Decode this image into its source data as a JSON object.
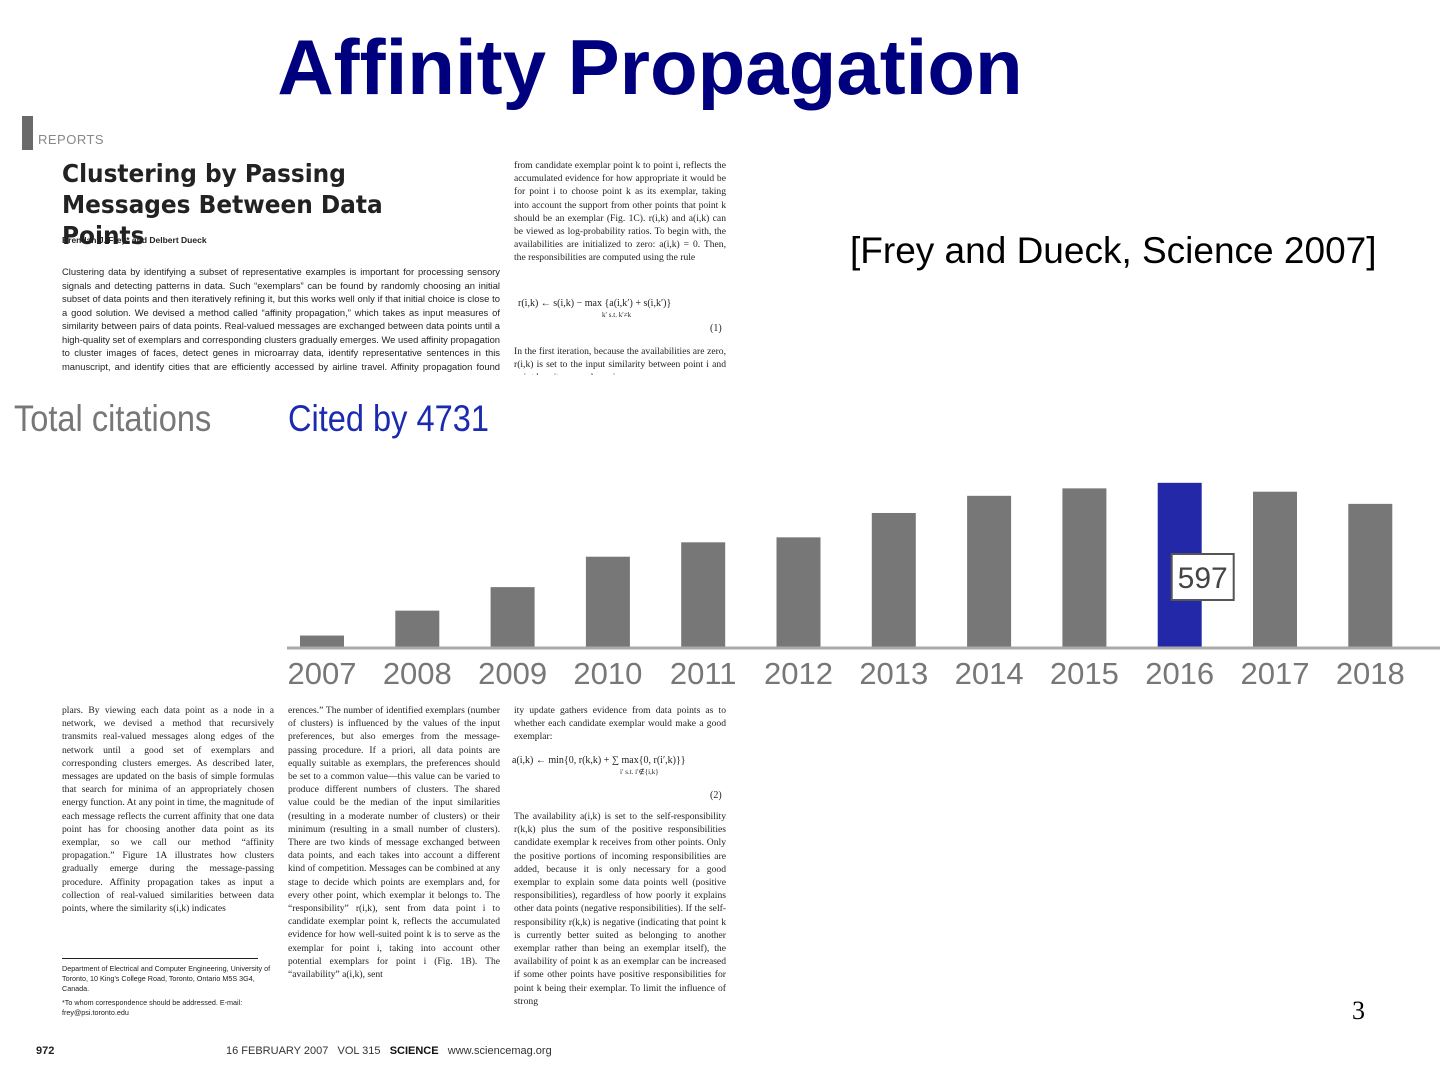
{
  "slide": {
    "title": "Affinity Propagation",
    "citation": "[Frey and Dueck, Science 2007]",
    "number": "3"
  },
  "paper": {
    "section": "REPORTS",
    "title": "Clustering by Passing Messages Between Data Points",
    "authors": "Brendan J. Frey* and Delbert Dueck",
    "abstract": "Clustering data by identifying a subset of representative examples is important for processing sensory signals and detecting patterns in data. Such “exemplars” can be found by randomly choosing an initial subset of data points and then iteratively refining it, but this works well only if that initial choice is close to a good solution. We devised a method called “affinity propagation,” which takes as input measures of similarity between pairs of data points. Real-valued messages are exchanged between data points until a high-quality set of exemplars and corresponding clusters gradually emerges. We used affinity propagation to cluster images of faces, detect genes in microarray data, identify representative sentences in this manuscript, and identify cities that are efficiently accessed by airline travel. Affinity propagation found clusters with much lower error than",
    "right_col_top": "from candidate exemplar point k to point i, reflects the accumulated evidence for how appropriate it would be for point i to choose point k as its exemplar, taking into account the support from other points that point k should be an exemplar (Fig. 1C). r(i,k) and a(i,k) can be viewed as log-probability ratios. To begin with, the availabilities are initialized to zero: a(i,k) = 0. Then, the responsibilities are computed using the rule",
    "equation_1": "r(i,k) ← s(i,k) − max {a(i,k′) + s(i,k′)}",
    "equation_1_sub": "k′ s.t. k′≠k",
    "equation_1_num": "(1)",
    "right_col_mid": "In the first iteration, because the availabilities are zero, r(i,k) is set to the input similarity between point i and point k as its exemplar, minus",
    "col1": "plars. By viewing each data point as a node in a network, we devised a method that recursively transmits real-valued messages along edges of the network until a good set of exemplars and corresponding clusters emerges. As described later, messages are updated on the basis of simple formulas that search for minima of an appropriately chosen energy function. At any point in time, the magnitude of each message reflects the current affinity that one data point has for choosing another data point as its exemplar, so we call our method “affinity propagation.” Figure 1A illustrates how clusters gradually emerge during the message-passing procedure. Affinity propagation takes as input a collection of real-valued similarities between data points, where the similarity s(i,k) indicates",
    "col2": "erences.” The number of identified exemplars (number of clusters) is influenced by the values of the input preferences, but also emerges from the message-passing procedure. If a priori, all data points are equally suitable as exemplars, the preferences should be set to a common value—this value can be varied to produce different numbers of clusters. The shared value could be the median of the input similarities (resulting in a moderate number of clusters) or their minimum (resulting in a small number of clusters). There are two kinds of message exchanged between data points, and each takes into account a different kind of competition. Messages can be combined at any stage to decide which points are exemplars and, for every other point, which exemplar it belongs to. The “responsibility” r(i,k), sent from data point i to candidate exemplar point k, reflects the accumulated evidence for how well-suited point k is to serve as the exemplar for point i, taking into account other potential exemplars for point i (Fig. 1B). The “availability” a(i,k), sent",
    "col3a": "ity update gathers evidence from data points as to whether each candidate exemplar would make a good exemplar:",
    "equation_2": "a(i,k) ← min{0, r(k,k) + ∑ max{0, r(i′,k)}}",
    "equation_2_sub": "i′ s.t. i′∉{i,k}",
    "equation_2_num": "(2)",
    "col3b": "The availability a(i,k) is set to the self-responsibility r(k,k) plus the sum of the positive responsibilities candidate exemplar k receives from other points. Only the positive portions of incoming responsibilities are added, because it is only necessary for a good exemplar to explain some data points well (positive responsibilities), regardless of how poorly it explains other data points (negative responsibilities). If the self-responsibility r(k,k) is negative (indicating that point k is currently better suited as belonging to another exemplar rather than being an exemplar itself), the availability of point k as an exemplar can be increased if some other points have positive responsibilities for point k being their exemplar. To limit the influence of strong",
    "footnote_affiliation": "Department of Electrical and Computer Engineering, University of Toronto, 10 King’s College Road, Toronto, Ontario M5S 3G4, Canada.",
    "footnote_contact": "*To whom correspondence should be addressed. E-mail: frey@psi.toronto.edu",
    "footer_page": "972",
    "footer_date": "16 FEBRUARY 2007",
    "footer_vol": "VOL 315",
    "footer_journal": "SCIENCE",
    "footer_url": "www.sciencemag.org"
  },
  "citations": {
    "label": "Total citations",
    "cited_by": "Cited by 4731"
  },
  "chart_data": {
    "type": "bar",
    "categories": [
      "2007",
      "2008",
      "2009",
      "2010",
      "2011",
      "2012",
      "2013",
      "2014",
      "2015",
      "2016",
      "2017",
      "2018"
    ],
    "values": [
      45,
      135,
      220,
      330,
      382,
      400,
      488,
      550,
      577,
      597,
      565,
      521
    ],
    "highlight_index": 9,
    "highlight_label": "597",
    "ylim": [
      0,
      600
    ],
    "grid": false,
    "bar_color": "#777777",
    "highlight_color": "#2228a8"
  }
}
